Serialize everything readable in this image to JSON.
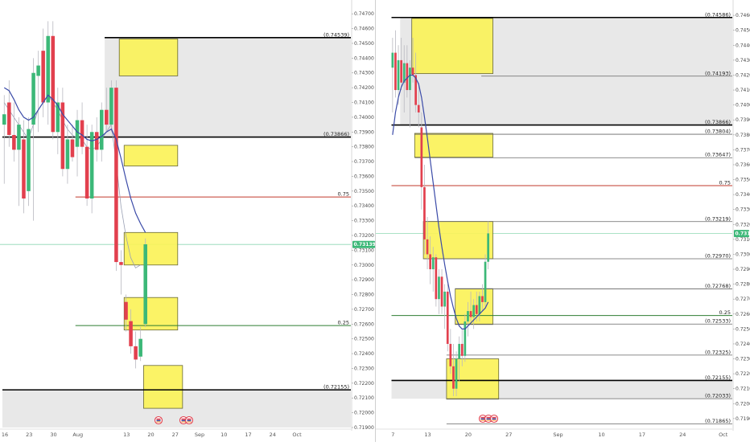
{
  "chart_data": [
    {
      "type": "candlestick",
      "panel": "left",
      "ylim": [
        0.719,
        0.7475
      ],
      "ytick_labels": [
        "0.74700",
        "0.74600",
        "0.74500",
        "0.74400",
        "0.74300",
        "0.74200",
        "0.74100",
        "0.74000",
        "0.73900",
        "0.73800",
        "0.73700",
        "0.73600",
        "0.73500",
        "0.73400",
        "0.73300",
        "0.73200",
        "0.73100",
        "0.73000",
        "0.72900",
        "0.72800",
        "0.72700",
        "0.72600",
        "0.72500",
        "0.72400",
        "0.72300",
        "0.72200",
        "0.72100",
        "0.72000",
        "0.71900"
      ],
      "x_ticks": [
        {
          "label": "16",
          "i": 0.5
        },
        {
          "label": "23",
          "i": 5.5
        },
        {
          "label": "30",
          "i": 10.5
        },
        {
          "label": "Aug",
          "i": 15.5
        },
        {
          "label": "13",
          "i": 25.5
        },
        {
          "label": "20",
          "i": 30.5
        },
        {
          "label": "27",
          "i": 35.5
        },
        {
          "label": "Sep",
          "i": 40.5
        },
        {
          "label": "10",
          "i": 45.5
        },
        {
          "label": "17",
          "i": 50.5
        },
        {
          "label": "24",
          "i": 55.5
        },
        {
          "label": "Oct",
          "i": 60.5
        }
      ],
      "x_slots": 63,
      "candles": [
        {
          "o": 0.7395,
          "h": 0.7415,
          "l": 0.7355,
          "c": 0.7402
        },
        {
          "o": 0.741,
          "h": 0.7425,
          "l": 0.738,
          "c": 0.7388
        },
        {
          "o": 0.7388,
          "h": 0.741,
          "l": 0.737,
          "c": 0.7378
        },
        {
          "o": 0.7378,
          "h": 0.74,
          "l": 0.734,
          "c": 0.7395
        },
        {
          "o": 0.7385,
          "h": 0.7398,
          "l": 0.7335,
          "c": 0.7345
        },
        {
          "o": 0.735,
          "h": 0.74,
          "l": 0.734,
          "c": 0.7392
        },
        {
          "o": 0.7395,
          "h": 0.744,
          "l": 0.733,
          "c": 0.743
        },
        {
          "o": 0.7428,
          "h": 0.7445,
          "l": 0.739,
          "c": 0.7435
        },
        {
          "o": 0.7445,
          "h": 0.746,
          "l": 0.74,
          "c": 0.741
        },
        {
          "o": 0.741,
          "h": 0.7465,
          "l": 0.7395,
          "c": 0.7455
        },
        {
          "o": 0.7455,
          "h": 0.7465,
          "l": 0.7385,
          "c": 0.739
        },
        {
          "o": 0.739,
          "h": 0.742,
          "l": 0.7375,
          "c": 0.741
        },
        {
          "o": 0.741,
          "h": 0.742,
          "l": 0.736,
          "c": 0.7365
        },
        {
          "o": 0.7365,
          "h": 0.7395,
          "l": 0.7355,
          "c": 0.7385
        },
        {
          "o": 0.7385,
          "h": 0.7395,
          "l": 0.737,
          "c": 0.7373
        },
        {
          "o": 0.738,
          "h": 0.7405,
          "l": 0.736,
          "c": 0.7398
        },
        {
          "o": 0.7398,
          "h": 0.741,
          "l": 0.7375,
          "c": 0.738
        },
        {
          "o": 0.738,
          "h": 0.7395,
          "l": 0.734,
          "c": 0.7345
        },
        {
          "o": 0.7345,
          "h": 0.7395,
          "l": 0.7335,
          "c": 0.739
        },
        {
          "o": 0.739,
          "h": 0.74,
          "l": 0.737,
          "c": 0.7378
        },
        {
          "o": 0.7378,
          "h": 0.741,
          "l": 0.737,
          "c": 0.7405
        },
        {
          "o": 0.7405,
          "h": 0.742,
          "l": 0.739,
          "c": 0.7395
        },
        {
          "o": 0.7395,
          "h": 0.7425,
          "l": 0.739,
          "c": 0.742
        },
        {
          "o": 0.742,
          "h": 0.7425,
          "l": 0.7296,
          "c": 0.7302
        },
        {
          "o": 0.7302,
          "h": 0.731,
          "l": 0.728,
          "c": 0.73
        },
        {
          "o": 0.7275,
          "h": 0.728,
          "l": 0.7255,
          "c": 0.7263
        },
        {
          "o": 0.7262,
          "h": 0.727,
          "l": 0.724,
          "c": 0.7245
        },
        {
          "o": 0.7245,
          "h": 0.7255,
          "l": 0.723,
          "c": 0.7236
        },
        {
          "o": 0.7238,
          "h": 0.7258,
          "l": 0.7235,
          "c": 0.725
        },
        {
          "o": 0.726,
          "h": 0.7318,
          "l": 0.7258,
          "c": 0.7314
        }
      ],
      "ma_line": [
        0.742,
        0.7418,
        0.7412,
        0.7405,
        0.74,
        0.7398,
        0.74,
        0.7405,
        0.741,
        0.7415,
        0.7412,
        0.7408,
        0.7402,
        0.7398,
        0.7394,
        0.739,
        0.7388,
        0.7385,
        0.7384,
        0.7385,
        0.7387,
        0.739,
        0.7392,
        0.7385,
        0.7372,
        0.7358,
        0.7345,
        0.7335,
        0.7328,
        0.7322
      ],
      "ma_start": 0,
      "thin_line": [
        0.741,
        0.7405,
        0.74,
        0.7395,
        0.739,
        0.7385,
        0.7395,
        0.7405,
        0.741,
        0.7415,
        0.741,
        0.7405,
        0.7398,
        0.7392,
        0.7388,
        0.7386,
        0.7385,
        0.738,
        0.7378,
        0.738,
        0.7385,
        0.739,
        0.7395,
        0.737,
        0.734,
        0.732,
        0.7305,
        0.7298,
        0.73
      ],
      "thin_start": 0,
      "zones": [
        {
          "name": "zone-top",
          "from": 0.74539,
          "to": 0.7387,
          "i0": 21,
          "i1": 78
        },
        {
          "name": "zone-bottom",
          "from": 0.72155,
          "to": 0.719,
          "i0": 0,
          "i1": 78
        }
      ],
      "boxes": [
        {
          "i0": 24,
          "i1": 36,
          "y1": 0.7453,
          "y2": 0.7428
        },
        {
          "i0": 25,
          "i1": 36,
          "y1": 0.7381,
          "y2": 0.7367
        },
        {
          "i0": 25,
          "i1": 36,
          "y1": 0.7322,
          "y2": 0.73
        },
        {
          "i0": 25,
          "i1": 36,
          "y1": 0.7278,
          "y2": 0.7256
        },
        {
          "i0": 29,
          "i1": 37,
          "y1": 0.7232,
          "y2": 0.7203
        }
      ],
      "levels": [
        {
          "label": "(0.74539)",
          "value": 0.74539,
          "i0": 21,
          "color": "#000000",
          "width": 1.6
        },
        {
          "label": "(0.73866)",
          "value": 0.73866,
          "i0": 0,
          "color": "#000000",
          "width": 1.6
        },
        {
          "label": "0.75",
          "value": 0.7346,
          "i0": 15,
          "color": "#c0392b",
          "width": 1.0
        },
        {
          "label": "0.25",
          "value": 0.7259,
          "i0": 15,
          "color": "#2e7d32",
          "width": 1.0
        },
        {
          "label": "(0.72155)",
          "value": 0.72155,
          "i0": 0,
          "color": "#000000",
          "width": 1.6
        }
      ],
      "current": {
        "label": "0.73139",
        "value": 0.73139
      }
    },
    {
      "type": "candlestick",
      "panel": "right",
      "ylim": [
        0.7184,
        0.7466
      ],
      "ytick_labels": [
        "0.74600",
        "0.74500",
        "0.74400",
        "0.74300",
        "0.74200",
        "0.74100",
        "0.74000",
        "0.73900",
        "0.73800",
        "0.73700",
        "0.73600",
        "0.73500",
        "0.73400",
        "0.73300",
        "0.73200",
        "0.73100",
        "0.73000",
        "0.72900",
        "0.72800",
        "0.72700",
        "0.72600",
        "0.72500",
        "0.72400",
        "0.72300",
        "0.72200",
        "0.72100",
        "0.72000",
        "0.71900"
      ],
      "x_ticks": [
        {
          "label": "7",
          "i": 0.5
        },
        {
          "label": "13",
          "i": 12.5
        },
        {
          "label": "20",
          "i": 26.5
        },
        {
          "label": "27",
          "i": 40.5
        },
        {
          "label": "Sep",
          "i": 57.5
        },
        {
          "label": "10",
          "i": 72.5
        },
        {
          "label": "17",
          "i": 86.5
        },
        {
          "label": "24",
          "i": 100.5
        },
        {
          "label": "Oct",
          "i": 114.5
        }
      ],
      "x_slots": 121,
      "candles": [
        {
          "o": 0.7425,
          "h": 0.7445,
          "l": 0.7395,
          "c": 0.7435
        },
        {
          "o": 0.7435,
          "h": 0.745,
          "l": 0.7405,
          "c": 0.741
        },
        {
          "o": 0.741,
          "h": 0.744,
          "l": 0.74,
          "c": 0.743
        },
        {
          "o": 0.743,
          "h": 0.7445,
          "l": 0.741,
          "c": 0.7415
        },
        {
          "o": 0.7415,
          "h": 0.744,
          "l": 0.7395,
          "c": 0.7428
        },
        {
          "o": 0.7428,
          "h": 0.744,
          "l": 0.7405,
          "c": 0.741
        },
        {
          "o": 0.741,
          "h": 0.743,
          "l": 0.7385,
          "c": 0.7425
        },
        {
          "o": 0.7425,
          "h": 0.7445,
          "l": 0.7415,
          "c": 0.742
        },
        {
          "o": 0.742,
          "h": 0.7435,
          "l": 0.7395,
          "c": 0.74
        },
        {
          "o": 0.74,
          "h": 0.7415,
          "l": 0.7385,
          "c": 0.7395
        },
        {
          "o": 0.7385,
          "h": 0.7395,
          "l": 0.733,
          "c": 0.7345
        },
        {
          "o": 0.7345,
          "h": 0.736,
          "l": 0.73,
          "c": 0.731
        },
        {
          "o": 0.731,
          "h": 0.7325,
          "l": 0.729,
          "c": 0.73
        },
        {
          "o": 0.73,
          "h": 0.7312,
          "l": 0.728,
          "c": 0.729
        },
        {
          "o": 0.729,
          "h": 0.7305,
          "l": 0.7275,
          "c": 0.7298
        },
        {
          "o": 0.7298,
          "h": 0.73,
          "l": 0.7265,
          "c": 0.727
        },
        {
          "o": 0.727,
          "h": 0.729,
          "l": 0.726,
          "c": 0.7285
        },
        {
          "o": 0.7285,
          "h": 0.729,
          "l": 0.726,
          "c": 0.7265
        },
        {
          "o": 0.7265,
          "h": 0.728,
          "l": 0.725,
          "c": 0.7275
        },
        {
          "o": 0.7275,
          "h": 0.728,
          "l": 0.7235,
          "c": 0.724
        },
        {
          "o": 0.724,
          "h": 0.725,
          "l": 0.722,
          "c": 0.7225
        },
        {
          "o": 0.7225,
          "h": 0.724,
          "l": 0.7205,
          "c": 0.721
        },
        {
          "o": 0.721,
          "h": 0.7235,
          "l": 0.7205,
          "c": 0.723
        },
        {
          "o": 0.723,
          "h": 0.7245,
          "l": 0.7215,
          "c": 0.724
        },
        {
          "o": 0.724,
          "h": 0.725,
          "l": 0.7225,
          "c": 0.7232
        },
        {
          "o": 0.7232,
          "h": 0.726,
          "l": 0.7228,
          "c": 0.7255
        },
        {
          "o": 0.7255,
          "h": 0.7268,
          "l": 0.7245,
          "c": 0.7262
        },
        {
          "o": 0.7262,
          "h": 0.7275,
          "l": 0.7255,
          "c": 0.7258
        },
        {
          "o": 0.7258,
          "h": 0.727,
          "l": 0.725,
          "c": 0.7266
        },
        {
          "o": 0.7266,
          "h": 0.7275,
          "l": 0.7255,
          "c": 0.726
        },
        {
          "o": 0.726,
          "h": 0.7275,
          "l": 0.7255,
          "c": 0.7272
        },
        {
          "o": 0.7272,
          "h": 0.728,
          "l": 0.7262,
          "c": 0.7268
        },
        {
          "o": 0.7268,
          "h": 0.73,
          "l": 0.7265,
          "c": 0.7295
        },
        {
          "o": 0.7295,
          "h": 0.7322,
          "l": 0.729,
          "c": 0.7314
        }
      ],
      "ma_line": [
        0.738,
        0.7395,
        0.7405,
        0.7412,
        0.7416,
        0.7418,
        0.742,
        0.742,
        0.7418,
        0.7414,
        0.7405,
        0.7392,
        0.7378,
        0.7363,
        0.7348,
        0.7333,
        0.7318,
        0.7305,
        0.7293,
        0.7282,
        0.7272,
        0.7264,
        0.7257,
        0.7252,
        0.725,
        0.725,
        0.7252,
        0.7254,
        0.7256,
        0.7258,
        0.726,
        0.7262,
        0.7264,
        0.7268
      ],
      "ma_start": 0,
      "thin_line": [],
      "thin_start": 0,
      "zones": [
        {
          "name": "zone-top",
          "from": 0.74586,
          "to": 0.73866,
          "i0": 3,
          "i1": 140
        },
        {
          "name": "zone-bottom",
          "from": 0.72155,
          "to": 0.72033,
          "i0": 0,
          "i1": 140
        }
      ],
      "boxes": [
        {
          "i0": 7,
          "i1": 35,
          "y1": 0.7458,
          "y2": 0.7421
        },
        {
          "i0": 8,
          "i1": 35,
          "y1": 0.7381,
          "y2": 0.7365
        },
        {
          "i0": 11,
          "i1": 35,
          "y1": 0.7322,
          "y2": 0.7297
        },
        {
          "i0": 22,
          "i1": 35,
          "y1": 0.7277,
          "y2": 0.7253
        },
        {
          "i0": 19,
          "i1": 37,
          "y1": 0.723,
          "y2": 0.7203
        }
      ],
      "levels": [
        {
          "label": "(0.74586)",
          "value": 0.74586,
          "i0": 0,
          "color": "#000000",
          "width": 1.6
        },
        {
          "label": "(0.74193)",
          "value": 0.74193,
          "i0": 31,
          "color": "#666666",
          "width": 0.8
        },
        {
          "label": "(0.73866)",
          "value": 0.73866,
          "i0": 0,
          "color": "#000000",
          "width": 1.6
        },
        {
          "label": "(0.73804)",
          "value": 0.73804,
          "i0": 8,
          "color": "#666666",
          "width": 0.8
        },
        {
          "label": "(0.73647)",
          "value": 0.73647,
          "i0": 8,
          "color": "#666666",
          "width": 0.8
        },
        {
          "label": "0.75",
          "value": 0.7346,
          "i0": 0,
          "color": "#c0392b",
          "width": 1.0
        },
        {
          "label": "(0.73219)",
          "value": 0.73219,
          "i0": 11,
          "color": "#666666",
          "width": 0.8
        },
        {
          "label": "(0.72970)",
          "value": 0.7297,
          "i0": 11,
          "color": "#666666",
          "width": 0.8
        },
        {
          "label": "(0.72768)",
          "value": 0.72768,
          "i0": 22,
          "color": "#666666",
          "width": 0.8
        },
        {
          "label": "0.25",
          "value": 0.7259,
          "i0": 0,
          "color": "#2e7d32",
          "width": 1.0
        },
        {
          "label": "(0.72533)",
          "value": 0.72533,
          "i0": 22,
          "color": "#666666",
          "width": 0.8
        },
        {
          "label": "(0.72325)",
          "value": 0.72325,
          "i0": 19,
          "color": "#666666",
          "width": 0.8
        },
        {
          "label": "(0.72155)",
          "value": 0.72155,
          "i0": 0,
          "color": "#000000",
          "width": 1.6
        },
        {
          "label": "(0.72033)",
          "value": 0.72033,
          "i0": 19,
          "color": "#666666",
          "width": 0.8
        },
        {
          "label": "(0.71865)",
          "value": 0.71865,
          "i0": 19,
          "color": "#666666",
          "width": 0.8
        }
      ],
      "current": {
        "label": "0.73139",
        "value": 0.73139
      }
    }
  ],
  "colors": {
    "up": "#3cb878",
    "down": "#e2404e",
    "wick": "#b8b8c0",
    "ma": "#3b4ba8",
    "thin": "#9aa0b4",
    "zone_fill": "#e4e4e4",
    "box_fill": "#fbf35a",
    "box_stroke": "#5c5c2a",
    "current_bg": "#3cb878",
    "current_line": "#8ed8b3",
    "event_icon_colors": [
      "#e2404e",
      "#3d4fa8",
      "#ff9f43"
    ]
  },
  "event_icons": [
    {
      "panel": "left",
      "icon": "flag-event-icon",
      "count": 1
    },
    {
      "panel": "left",
      "icon": "flag-event-icon",
      "count": 2
    },
    {
      "panel": "right",
      "icon": "flag-event-icon",
      "count": 3
    }
  ]
}
